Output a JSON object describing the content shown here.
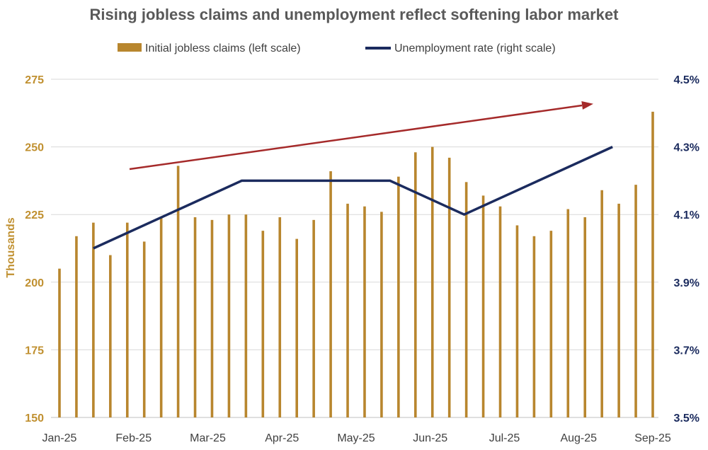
{
  "chart_data": {
    "type": "bar",
    "title": "Rising jobless claims and unemployment reflect softening labor market",
    "ylabel": "Thousands",
    "ylim_left": [
      150,
      275
    ],
    "ylim_right": [
      3.5,
      4.5
    ],
    "left_ticks": [
      "150",
      "175",
      "200",
      "225",
      "250",
      "275"
    ],
    "right_ticks": [
      "3.5%",
      "3.7%",
      "3.9%",
      "4.1%",
      "4.3%",
      "4.5%"
    ],
    "x_ticks": [
      "Jan-25",
      "Feb-25",
      "Mar-25",
      "Apr-25",
      "May-25",
      "Jun-25",
      "Jul-25",
      "Aug-25",
      "Sep-25"
    ],
    "grid": true,
    "legend_position": "top",
    "series": [
      {
        "name": "Initial jobless claims (left scale)",
        "type": "bar",
        "axis": "left",
        "color": "#B8862E",
        "values": [
          205,
          217,
          222,
          210,
          222,
          215,
          224,
          243,
          224,
          223,
          225,
          225,
          219,
          224,
          216,
          223,
          241,
          229,
          228,
          226,
          239,
          248,
          250,
          246,
          237,
          232,
          228,
          221,
          217,
          219,
          227,
          224,
          234,
          229,
          236,
          263
        ]
      },
      {
        "name": "Unemployment rate (right scale)",
        "type": "line",
        "axis": "right",
        "color": "#1B2B5E",
        "points": [
          {
            "x": "Jan-25",
            "y": 4.0
          },
          {
            "x": "Feb-25",
            "y": 4.1
          },
          {
            "x": "Mar-25",
            "y": 4.2
          },
          {
            "x": "Apr-25",
            "y": 4.2
          },
          {
            "x": "May-25",
            "y": 4.2
          },
          {
            "x": "Jun-25",
            "y": 4.1
          },
          {
            "x": "Jul-25",
            "y": 4.2
          },
          {
            "x": "Aug-25",
            "y": 4.3
          }
        ]
      }
    ],
    "annotations": [
      {
        "type": "trend-arrow",
        "color": "#A52A2A"
      }
    ]
  }
}
